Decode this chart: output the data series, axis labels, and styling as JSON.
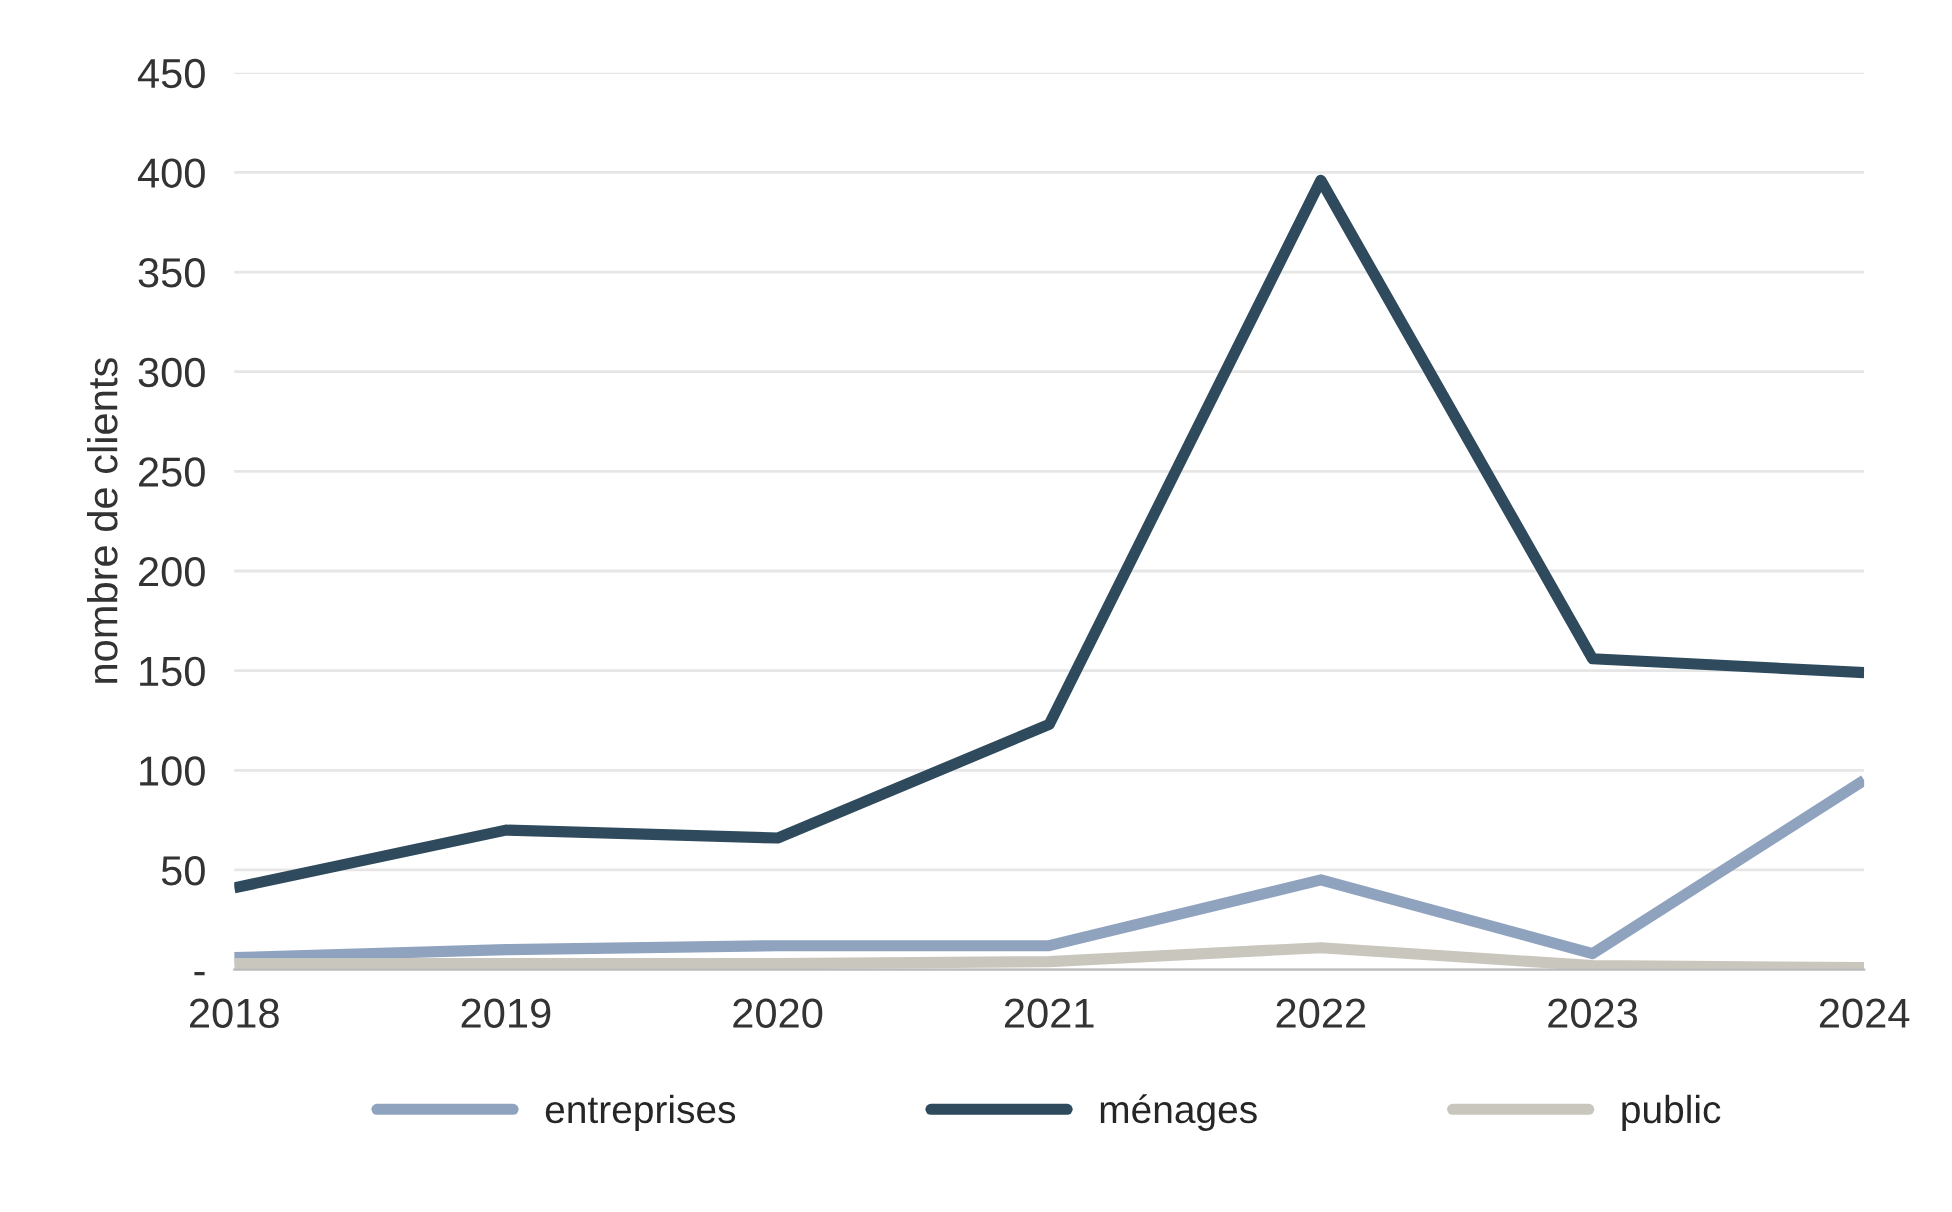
{
  "chart_data": {
    "type": "line",
    "ylabel": "nombre de clients",
    "x": [
      2018,
      2019,
      2020,
      2021,
      2022,
      2023,
      2024
    ],
    "xlim": [
      2018,
      2024
    ],
    "xticks": [
      2018,
      2019,
      2020,
      2021,
      2022,
      2023,
      2024
    ],
    "ylim": [
      0,
      450
    ],
    "yticks": [
      {
        "value": 0,
        "label": "-"
      },
      50,
      100,
      150,
      200,
      250,
      300,
      350,
      400,
      450
    ],
    "grid": "y",
    "legend": "bottom",
    "line_style": "solid",
    "marker": "none",
    "series": [
      {
        "name": "entreprises",
        "color": "#8fa3bf",
        "values": [
          6,
          10,
          12,
          12,
          45,
          8,
          95
        ]
      },
      {
        "name": "ménages",
        "color": "#2e4a5c",
        "values": [
          41,
          70,
          66,
          123,
          396,
          156,
          149
        ]
      },
      {
        "name": "public",
        "color": "#c9c6bd",
        "values": [
          3,
          3,
          3,
          4,
          11,
          2,
          1
        ]
      }
    ]
  }
}
